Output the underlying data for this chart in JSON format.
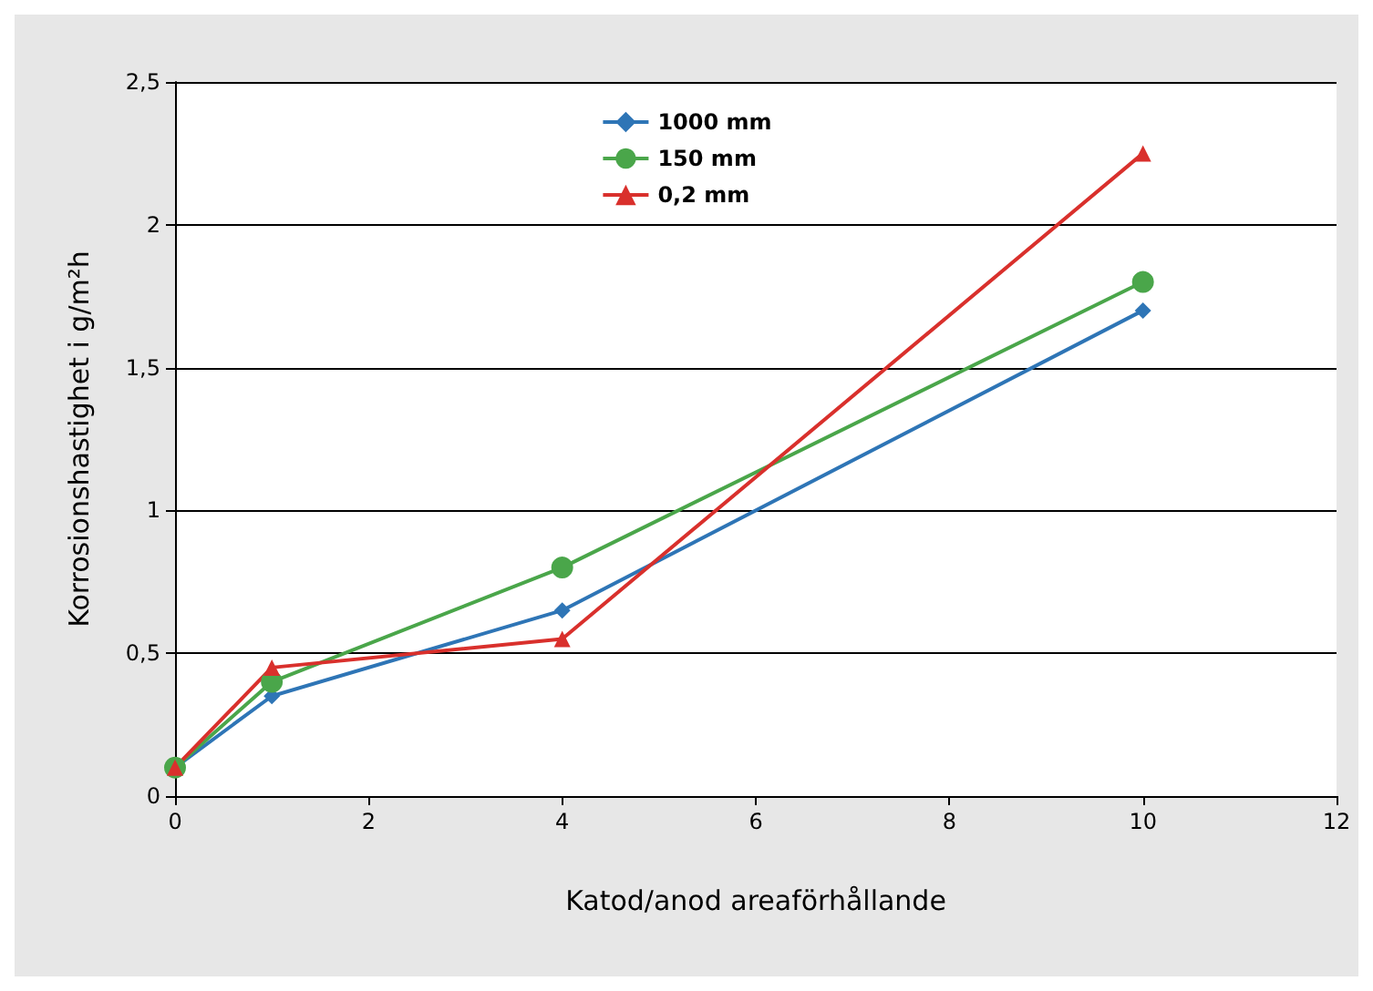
{
  "chart_data": {
    "type": "line",
    "xlabel": "Katod/anod areaförhållande",
    "ylabel": "Korrosionshastighet i g/m²h",
    "x": [
      0,
      1,
      4,
      10
    ],
    "series": [
      {
        "name": "1000 mm",
        "color": "#2e75b6",
        "values": [
          0.1,
          0.35,
          0.65,
          1.7
        ],
        "marker": "diamond"
      },
      {
        "name": "150 mm",
        "color": "#4aa64a",
        "values": [
          0.1,
          0.4,
          0.8,
          1.8
        ],
        "marker": "circle"
      },
      {
        "name": "0,2 mm",
        "color": "#d9302c",
        "values": [
          0.1,
          0.45,
          0.55,
          2.25
        ],
        "marker": "triangle"
      }
    ],
    "xlim": [
      0,
      12
    ],
    "xticks": [
      0,
      2,
      4,
      6,
      8,
      10,
      12
    ],
    "ylim": [
      0,
      2.5
    ],
    "yticks": [
      0,
      {
        "value": 0.5,
        "label": "0,5"
      },
      1,
      {
        "value": 1.5,
        "label": "1,5"
      },
      2,
      {
        "value": 2.5,
        "label": "2,5"
      }
    ],
    "grid": "y",
    "legend": "top",
    "line_style": "solid"
  }
}
